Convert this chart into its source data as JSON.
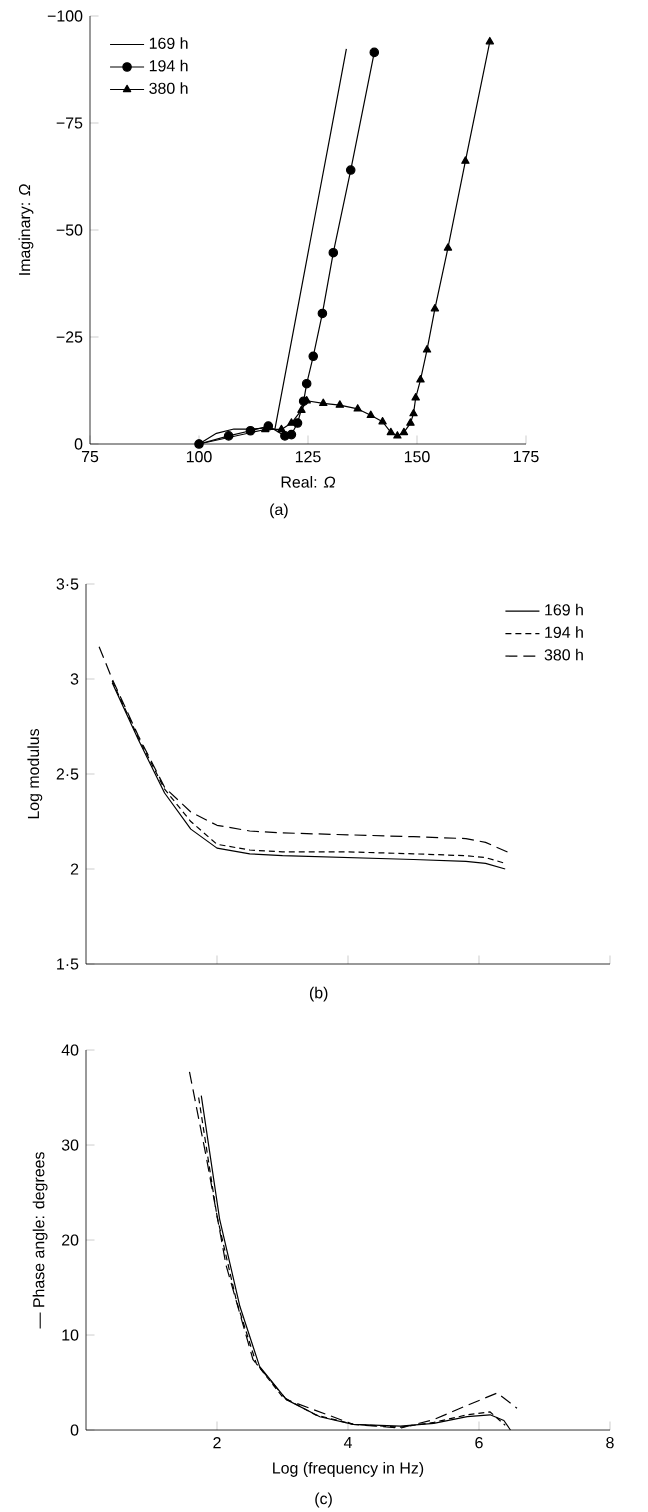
{
  "chart_data": [
    {
      "type": "line",
      "xlabel": "Real: *Ω*",
      "ylabel": "Imaginary: *Ω*",
      "annotations": [
        "(a)"
      ],
      "xlim": [
        75,
        175
      ],
      "xticks": [
        75,
        100,
        125,
        150,
        175
      ],
      "ylim": [
        0,
        -100
      ],
      "yticks": [
        {
          "value": 0,
          "label": "0"
        },
        {
          "value": -25,
          "label": "−25"
        },
        {
          "value": -50,
          "label": "−50"
        },
        {
          "value": -75,
          "label": "−75"
        },
        {
          "value": -100,
          "label": "−100"
        }
      ],
      "legend": "top left",
      "grid": false,
      "series": [
        {
          "name": "169 h",
          "color": "#000000",
          "marker": "none",
          "line_style": "solid",
          "x": [
            100,
            104,
            108,
            112,
            116,
            117.4,
            122,
            126,
            130,
            133.8
          ],
          "values": [
            0,
            -2.5,
            -3.5,
            -3.5,
            -3.8,
            -3.4,
            -28.3,
            -50,
            -71.6,
            -92.3
          ]
        },
        {
          "name": "194 h",
          "color": "#000000",
          "marker": "circle",
          "line_style": "solid",
          "x": [
            100,
            106.8,
            111.8,
            115.9,
            119.7,
            121.2,
            122.6,
            124,
            124.7,
            126.2,
            128.3,
            130.8,
            134.8,
            140.2
          ],
          "values": [
            0,
            -1.9,
            -3.1,
            -4.2,
            -1.9,
            -2.2,
            -4.9,
            -10,
            -14.1,
            -20.5,
            -30.5,
            -44.7,
            -64,
            -91.5
          ]
        },
        {
          "name": "380 h",
          "color": "#000000",
          "marker": "triangle",
          "line_style": "solid",
          "x": [
            100,
            115.2,
            118.9,
            121.2,
            123.5,
            124.7,
            128.5,
            132.3,
            136.4,
            139.4,
            142.1,
            144,
            145.5,
            147,
            148.5,
            149.2,
            149.7,
            150.8,
            152.3,
            154.1,
            157.1,
            161.1,
            166.7
          ],
          "values": [
            0,
            -3.4,
            -3.4,
            -4.9,
            -7.9,
            -10.1,
            -9.5,
            -9.1,
            -8.2,
            -6.7,
            -5.2,
            -2.7,
            -1.9,
            -2.7,
            -4.9,
            -7.1,
            -10.8,
            -15,
            -22,
            -31.6,
            -45.8,
            -66.1,
            -94
          ]
        }
      ]
    },
    {
      "type": "line",
      "ylabel": "Log modulus",
      "annotations": [
        "(b)"
      ],
      "xlim": [
        0,
        8
      ],
      "xticks": [
        {
          "value": 2,
          "label": null
        },
        {
          "value": 4,
          "label": null
        },
        {
          "value": 6,
          "label": null
        },
        {
          "value": 8,
          "label": null
        }
      ],
      "ylim": [
        1.5,
        3.5
      ],
      "yticks": [
        {
          "value": 1.5,
          "label": "1·5"
        },
        {
          "value": 2,
          "label": "2"
        },
        {
          "value": 2.5,
          "label": "2·5"
        },
        {
          "value": 3,
          "label": "3"
        },
        {
          "value": 3.5,
          "label": "3·5"
        }
      ],
      "tick_labels": "y",
      "legend": "top right",
      "grid": false,
      "series": [
        {
          "name": "169 h",
          "color": "#000000",
          "marker": "none",
          "line_style": "solid",
          "x": [
            0.4,
            0.8,
            1.2,
            1.6,
            2,
            2.5,
            3,
            4,
            5,
            5.8,
            6.1,
            6.4
          ],
          "values": [
            2.98,
            2.68,
            2.4,
            2.21,
            2.11,
            2.08,
            2.07,
            2.06,
            2.05,
            2.04,
            2.03,
            2.0
          ]
        },
        {
          "name": "194 h",
          "color": "#000000",
          "marker": "none",
          "line_style": "dashed",
          "x": [
            0.4,
            0.8,
            1.2,
            1.6,
            2,
            2.5,
            3,
            4,
            5,
            5.8,
            6.1,
            6.4
          ],
          "values": [
            2.99,
            2.69,
            2.42,
            2.25,
            2.13,
            2.1,
            2.09,
            2.09,
            2.08,
            2.07,
            2.06,
            2.03
          ]
        },
        {
          "name": "380 h",
          "color": "#000000",
          "marker": "none",
          "line_style": "dashed",
          "x": [
            0.2,
            0.4,
            0.8,
            1.2,
            1.6,
            2,
            2.5,
            3,
            4,
            5,
            5.8,
            6.1,
            6.5
          ],
          "values": [
            3.17,
            3.0,
            2.7,
            2.43,
            2.3,
            2.23,
            2.2,
            2.19,
            2.18,
            2.17,
            2.16,
            2.14,
            2.08
          ]
        }
      ]
    },
    {
      "type": "line",
      "xlabel": "Log (frequency in Hz)",
      "ylabel": "— Phase angle: degrees",
      "annotations": [
        "(c)"
      ],
      "xlim": [
        0,
        8
      ],
      "xticks": [
        2,
        4,
        6,
        8
      ],
      "ylim": [
        0,
        40
      ],
      "yticks": [
        0,
        10,
        20,
        30,
        40
      ],
      "grid": false,
      "series": [
        {
          "color": "#000000",
          "marker": "none",
          "line_style": "solid",
          "x": [
            1.76,
            2.04,
            2.35,
            2.65,
            3.06,
            3.57,
            4.08,
            4.8,
            5.31,
            5.82,
            6.17,
            6.38,
            6.48
          ],
          "values": [
            35.2,
            22.2,
            13,
            6.7,
            3.2,
            1.4,
            0.6,
            0.4,
            0.7,
            1.4,
            1.6,
            1,
            0
          ]
        },
        {
          "color": "#000000",
          "marker": "none",
          "line_style": "dashed",
          "x": [
            1.72,
            2.0,
            2.3,
            2.6,
            3.0,
            3.5,
            4.08,
            4.8,
            5.31,
            5.82,
            6.17,
            6.4
          ],
          "values": [
            35,
            22.5,
            13.5,
            7,
            3.5,
            1.6,
            0.6,
            0.3,
            0.8,
            1.6,
            1.9,
            0.5
          ]
        },
        {
          "color": "#000000",
          "marker": "none",
          "line_style": "dashed",
          "x": [
            1.58,
            1.84,
            2.14,
            2.55,
            3.06,
            4.08,
            4.8,
            5.31,
            5.82,
            6.28,
            6.58
          ],
          "values": [
            37.7,
            28.6,
            17.3,
            7.4,
            3.2,
            0.6,
            0.2,
            1.1,
            2.6,
            3.9,
            2.3
          ]
        }
      ]
    }
  ]
}
